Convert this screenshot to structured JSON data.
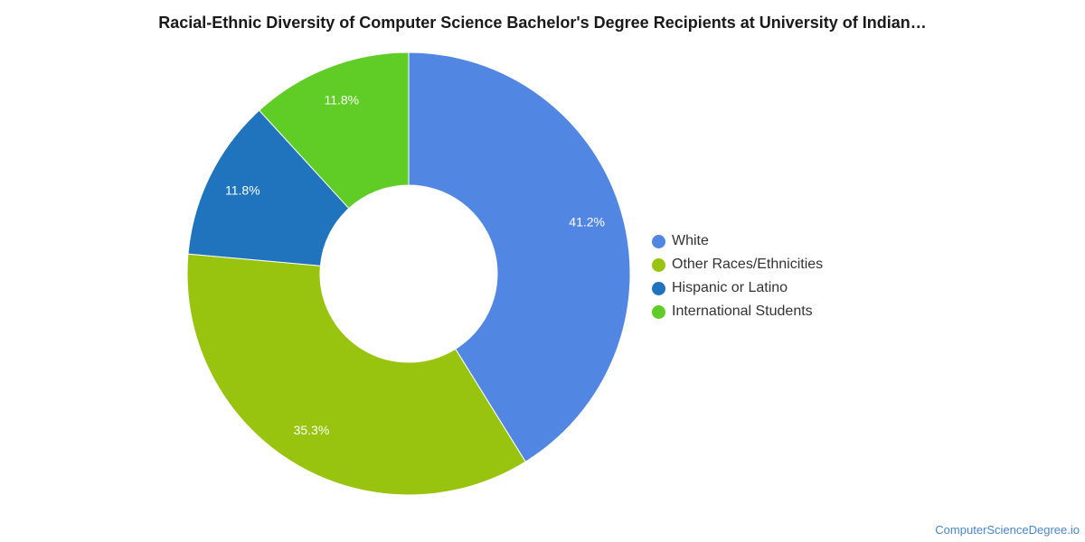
{
  "chart_data": {
    "type": "pie",
    "variant": "donut",
    "title": "Racial-Ethnic Diversity of Computer Science Bachelor's Degree Recipients at University of Indian…",
    "categories": [
      "White",
      "Other Races/Ethnicities",
      "Hispanic or Latino",
      "International Students"
    ],
    "values": [
      41.2,
      35.3,
      11.8,
      11.8
    ],
    "value_labels": [
      "41.2%",
      "35.3%",
      "11.8%",
      "11.8%"
    ],
    "colors": [
      "#5286e3",
      "#98c30e",
      "#1f74bd",
      "#5fcd25"
    ],
    "legend_position": "right"
  },
  "footer": {
    "credit": "ComputerScienceDegree.io"
  }
}
